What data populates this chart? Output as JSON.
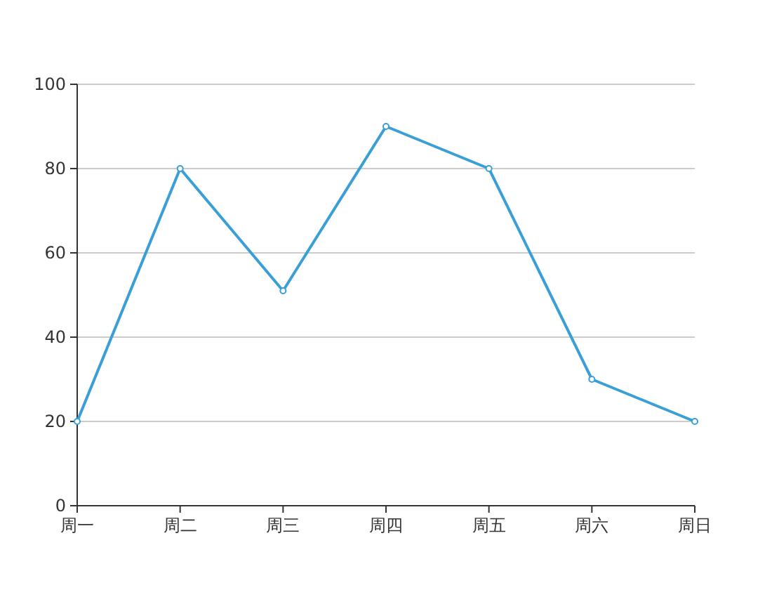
{
  "chart_data": {
    "type": "line",
    "categories": [
      "周一",
      "周二",
      "周三",
      "周四",
      "周五",
      "周六",
      "周日"
    ],
    "series": [
      {
        "color": "#3a9fd6",
        "values": [
          20,
          80,
          51,
          90,
          80,
          30,
          20
        ]
      }
    ],
    "ylim": [
      0,
      100
    ],
    "yticks": [
      0,
      20,
      40,
      60,
      80,
      100
    ],
    "grid": "y",
    "marker": "circle",
    "line_style": "solid"
  }
}
